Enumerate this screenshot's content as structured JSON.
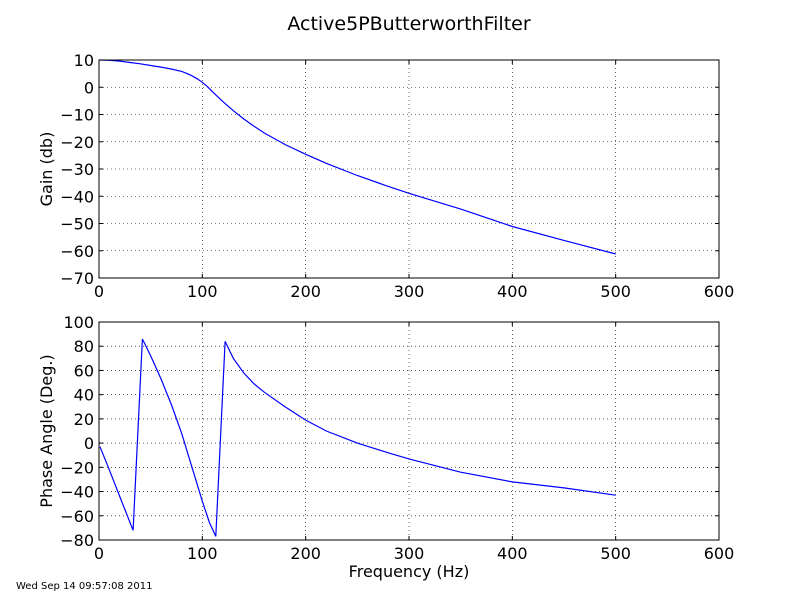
{
  "title": "Active5PButterworthFilter",
  "timestamp": "Wed Sep 14 09:57:08 2011",
  "colors": {
    "series": "#0000ff",
    "grid": "#000000",
    "axes": "#000000"
  },
  "chart_data": [
    {
      "type": "line",
      "title": "Active5PButterworthFilter",
      "xlabel": "",
      "ylabel": "Gain (db)",
      "xlim": [
        0,
        600
      ],
      "ylim": [
        -70,
        10
      ],
      "xticks": [
        0,
        100,
        200,
        300,
        400,
        500,
        600
      ],
      "yticks": [
        10,
        0,
        -10,
        -20,
        -30,
        -40,
        -50,
        -60,
        -70
      ],
      "xtick_labels": [
        "0",
        "100",
        "200",
        "300",
        "400",
        "500",
        "600"
      ],
      "ytick_labels": [
        "10",
        "0",
        "−10",
        "−20",
        "−30",
        "−40",
        "−50",
        "−60",
        "−70"
      ],
      "grid": true,
      "series": [
        {
          "color": "#0000ff",
          "x": [
            1,
            10,
            20,
            30,
            40,
            50,
            60,
            70,
            80,
            85,
            90,
            95,
            100,
            105,
            110,
            115,
            120,
            130,
            140,
            150,
            160,
            180,
            200,
            220,
            250,
            280,
            300,
            350,
            400,
            450,
            500
          ],
          "y": [
            10.0,
            9.9,
            9.6,
            9.1,
            8.6,
            8.0,
            7.4,
            6.7,
            5.8,
            5.1,
            4.2,
            3.1,
            1.8,
            0.2,
            -1.7,
            -3.5,
            -5.3,
            -8.6,
            -11.6,
            -14.3,
            -16.8,
            -21.0,
            -24.6,
            -27.9,
            -32.4,
            -36.4,
            -38.9,
            -44.7,
            -51.1,
            -56.2,
            -61.2
          ]
        }
      ]
    },
    {
      "type": "line",
      "title": "",
      "xlabel": "Frequency (Hz)",
      "ylabel": "Phase Angle (Deg.)",
      "xlim": [
        0,
        600
      ],
      "ylim": [
        -80,
        100
      ],
      "xticks": [
        0,
        100,
        200,
        300,
        400,
        500,
        600
      ],
      "yticks": [
        100,
        80,
        60,
        40,
        20,
        0,
        -20,
        -40,
        -60,
        -80
      ],
      "xtick_labels": [
        "0",
        "100",
        "200",
        "300",
        "400",
        "500",
        "600"
      ],
      "ytick_labels": [
        "100",
        "80",
        "60",
        "40",
        "20",
        "0",
        "−20",
        "−40",
        "−60",
        "−80"
      ],
      "grid": true,
      "series": [
        {
          "color": "#0000ff",
          "x": [
            1,
            10,
            20,
            33,
            42,
            50,
            60,
            70,
            80,
            90,
            100,
            107,
            113,
            122,
            130,
            140,
            150,
            160,
            180,
            200,
            220,
            250,
            280,
            300,
            350,
            400,
            450,
            500
          ],
          "y": [
            -3,
            -22,
            -44,
            -72,
            86,
            72,
            53,
            32,
            8,
            -20,
            -48,
            -66,
            -77,
            84,
            70,
            58,
            49,
            42,
            30,
            19,
            10,
            0,
            -8,
            -13,
            -24,
            -32,
            -37,
            -43
          ]
        }
      ]
    }
  ]
}
